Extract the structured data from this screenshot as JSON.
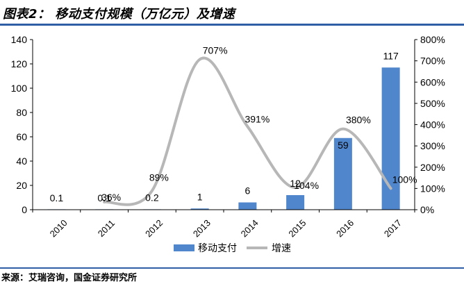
{
  "header": {
    "title": "图表2： 移动支付规模（万亿元）及增速"
  },
  "footer": {
    "source": "来源：艾瑞咨询，国金证券研究所"
  },
  "colors": {
    "bar": "#4f86cc",
    "line": "#b7b7b7",
    "rule": "#2f5da6"
  },
  "chart_data": {
    "type": "bar",
    "title": "移动支付规模（万亿元）及增速",
    "categories": [
      "2010",
      "2011",
      "2012",
      "2013",
      "2014",
      "2015",
      "2016",
      "2017"
    ],
    "series": [
      {
        "name": "移动支付",
        "kind": "bar",
        "axis": "left",
        "values": [
          0.1,
          0.1,
          0.2,
          1,
          6,
          12,
          59,
          117
        ],
        "labels": [
          "0.1",
          "0.1",
          "0.2",
          "1",
          "6",
          "12",
          "59",
          "117"
        ]
      },
      {
        "name": "增速",
        "kind": "line",
        "axis": "right",
        "values": [
          null,
          36,
          89,
          707,
          391,
          104,
          380,
          100
        ],
        "labels": [
          "",
          "36%",
          "89%",
          "707%",
          "391%",
          "104%",
          "380%",
          "100%"
        ]
      }
    ],
    "ylim": [
      0,
      140
    ],
    "yticks": [
      "0",
      "20",
      "40",
      "60",
      "80",
      "100",
      "120",
      "140"
    ],
    "y2lim": [
      0,
      800
    ],
    "y2ticks": [
      "0%",
      "100%",
      "200%",
      "300%",
      "400%",
      "500%",
      "600%",
      "700%",
      "800%"
    ],
    "legend": {
      "position": "bottom",
      "items": [
        "移动支付",
        "增速"
      ]
    }
  }
}
